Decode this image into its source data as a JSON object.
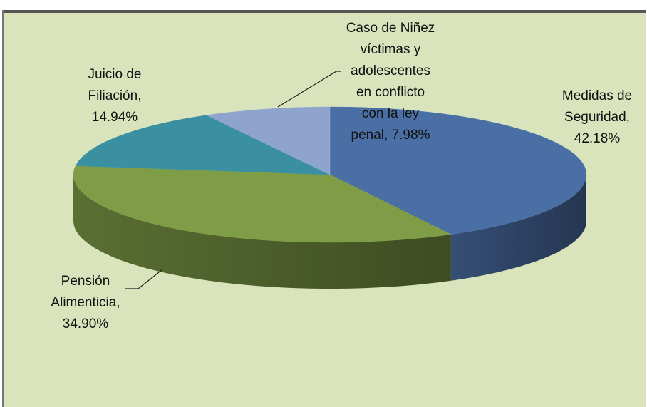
{
  "chart_data": {
    "type": "pie3d",
    "labels": [
      "Medidas de Seguridad, 42.18%",
      "Pensión Alimenticia, 34.90%",
      "Juicio de Filiación, 14.94%",
      "Caso de Niñez víctimas y adolescentes en conflicto con la ley penal, 7.98%"
    ],
    "values": [
      42.18,
      34.9,
      14.94,
      7.98
    ],
    "colors": [
      "#4a6fa5",
      "#7f9c46",
      "#3a8fa0",
      "#8ea4cc"
    ]
  }
}
